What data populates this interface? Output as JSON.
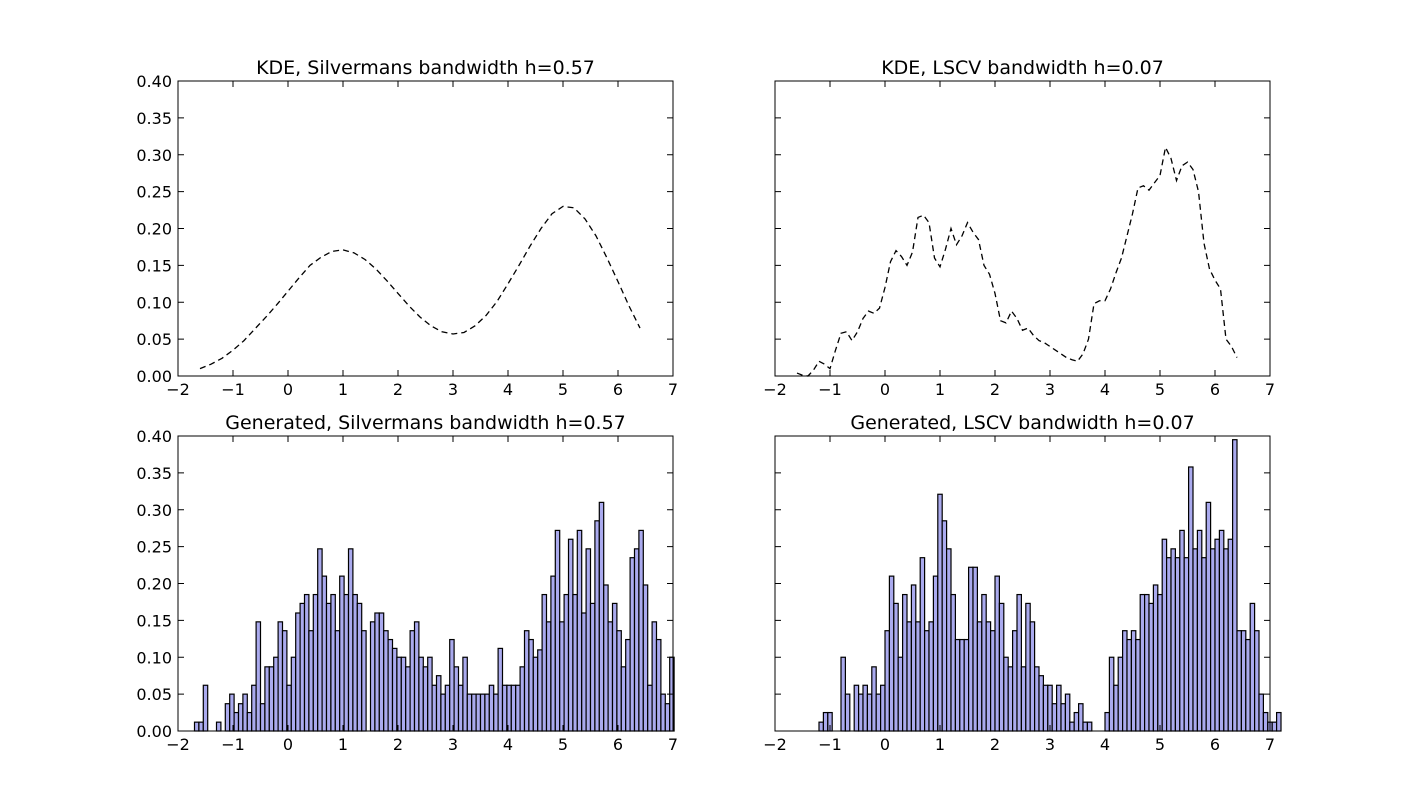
{
  "colors": {
    "bar_fill": "#aaaaee",
    "bar_edge": "#000000",
    "line": "#000000",
    "background": "#ffffff"
  },
  "chart_data": [
    {
      "type": "line",
      "title": "KDE, Silvermans bandwidth h=0.57",
      "line_style": "dashed",
      "xlim": [
        -2,
        7
      ],
      "ylim": [
        0,
        0.4
      ],
      "xticks": [
        -2,
        -1,
        0,
        1,
        2,
        3,
        4,
        5,
        6,
        7
      ],
      "yticks": [
        "0.00",
        "0.05",
        "0.10",
        "0.15",
        "0.20",
        "0.25",
        "0.30",
        "0.35",
        "0.40"
      ],
      "y_tick_labels_visible": true,
      "x": [
        -1.6,
        -1.4,
        -1.2,
        -1.0,
        -0.8,
        -0.6,
        -0.4,
        -0.2,
        0.0,
        0.2,
        0.4,
        0.6,
        0.8,
        1.0,
        1.2,
        1.4,
        1.6,
        1.8,
        2.0,
        2.2,
        2.4,
        2.6,
        2.8,
        3.0,
        3.2,
        3.4,
        3.6,
        3.8,
        4.0,
        4.2,
        4.4,
        4.6,
        4.8,
        5.0,
        5.2,
        5.4,
        5.6,
        5.8,
        6.0,
        6.2,
        6.4
      ],
      "y": [
        0.01,
        0.016,
        0.024,
        0.035,
        0.048,
        0.064,
        0.08,
        0.097,
        0.115,
        0.133,
        0.15,
        0.161,
        0.169,
        0.171,
        0.167,
        0.158,
        0.145,
        0.129,
        0.112,
        0.095,
        0.08,
        0.068,
        0.06,
        0.057,
        0.059,
        0.068,
        0.082,
        0.101,
        0.125,
        0.15,
        0.176,
        0.2,
        0.22,
        0.23,
        0.228,
        0.213,
        0.19,
        0.16,
        0.128,
        0.095,
        0.065
      ]
    },
    {
      "type": "line",
      "title": "KDE, LSCV bandwidth h=0.07",
      "line_style": "dashed",
      "xlim": [
        -2,
        7
      ],
      "ylim": [
        0,
        0.4
      ],
      "xticks": [
        -2,
        -1,
        0,
        1,
        2,
        3,
        4,
        5,
        6,
        7
      ],
      "yticks": [
        "0.00",
        "0.05",
        "0.10",
        "0.15",
        "0.20",
        "0.25",
        "0.30",
        "0.35",
        "0.40"
      ],
      "y_tick_labels_visible": false,
      "x": [
        -1.6,
        -1.5,
        -1.4,
        -1.3,
        -1.2,
        -1.1,
        -1.0,
        -0.9,
        -0.8,
        -0.7,
        -0.6,
        -0.5,
        -0.4,
        -0.3,
        -0.2,
        -0.1,
        0.0,
        0.1,
        0.2,
        0.3,
        0.4,
        0.5,
        0.6,
        0.7,
        0.8,
        0.9,
        1.0,
        1.1,
        1.2,
        1.3,
        1.4,
        1.5,
        1.6,
        1.7,
        1.8,
        1.9,
        2.0,
        2.1,
        2.2,
        2.3,
        2.4,
        2.5,
        2.6,
        2.7,
        2.8,
        2.9,
        3.0,
        3.1,
        3.2,
        3.3,
        3.4,
        3.5,
        3.6,
        3.7,
        3.8,
        3.9,
        4.0,
        4.1,
        4.2,
        4.3,
        4.4,
        4.5,
        4.6,
        4.7,
        4.8,
        4.9,
        5.0,
        5.1,
        5.2,
        5.3,
        5.4,
        5.5,
        5.6,
        5.7,
        5.8,
        5.9,
        6.0,
        6.1,
        6.2,
        6.3,
        6.4
      ],
      "y": [
        0.004,
        0.001,
        0.0,
        0.008,
        0.02,
        0.016,
        0.01,
        0.035,
        0.058,
        0.06,
        0.048,
        0.06,
        0.078,
        0.088,
        0.085,
        0.092,
        0.12,
        0.155,
        0.17,
        0.162,
        0.15,
        0.168,
        0.215,
        0.218,
        0.208,
        0.16,
        0.148,
        0.172,
        0.2,
        0.178,
        0.19,
        0.208,
        0.195,
        0.185,
        0.15,
        0.138,
        0.112,
        0.075,
        0.072,
        0.088,
        0.078,
        0.062,
        0.065,
        0.055,
        0.048,
        0.045,
        0.04,
        0.035,
        0.03,
        0.025,
        0.022,
        0.02,
        0.03,
        0.05,
        0.098,
        0.102,
        0.102,
        0.118,
        0.14,
        0.16,
        0.19,
        0.22,
        0.255,
        0.258,
        0.252,
        0.262,
        0.272,
        0.31,
        0.295,
        0.265,
        0.285,
        0.29,
        0.28,
        0.25,
        0.18,
        0.145,
        0.13,
        0.118,
        0.05,
        0.04,
        0.025
      ]
    },
    {
      "type": "bar",
      "title": "Generated, Silvermans bandwidth h=0.57",
      "xlim": [
        -2,
        7
      ],
      "ylim": [
        0,
        0.4
      ],
      "xticks": [
        -2,
        -1,
        0,
        1,
        2,
        3,
        4,
        5,
        6,
        7
      ],
      "yticks": [
        "0.00",
        "0.05",
        "0.10",
        "0.15",
        "0.20",
        "0.25",
        "0.30",
        "0.35",
        "0.40"
      ],
      "y_tick_labels_visible": true,
      "x_start": -1.7,
      "bin_width": 0.08,
      "values": [
        0.012,
        0.012,
        0.062,
        0.0,
        0.0,
        0.012,
        0.0,
        0.037,
        0.05,
        0.025,
        0.037,
        0.05,
        0.025,
        0.062,
        0.148,
        0.037,
        0.087,
        0.087,
        0.1,
        0.148,
        0.136,
        0.062,
        0.1,
        0.16,
        0.173,
        0.185,
        0.136,
        0.185,
        0.247,
        0.21,
        0.173,
        0.185,
        0.136,
        0.21,
        0.185,
        0.247,
        0.185,
        0.173,
        0.136,
        0.0,
        0.148,
        0.16,
        0.16,
        0.136,
        0.124,
        0.112,
        0.1,
        0.1,
        0.087,
        0.136,
        0.148,
        0.1,
        0.087,
        0.1,
        0.062,
        0.075,
        0.05,
        0.062,
        0.124,
        0.087,
        0.062,
        0.1,
        0.05,
        0.05,
        0.05,
        0.05,
        0.05,
        0.062,
        0.05,
        0.112,
        0.062,
        0.062,
        0.062,
        0.062,
        0.087,
        0.136,
        0.124,
        0.1,
        0.11,
        0.185,
        0.148,
        0.21,
        0.272,
        0.148,
        0.185,
        0.26,
        0.185,
        0.272,
        0.16,
        0.247,
        0.173,
        0.285,
        0.31,
        0.198,
        0.148,
        0.173,
        0.136,
        0.087,
        0.124,
        0.235,
        0.247,
        0.272,
        0.198,
        0.062,
        0.148,
        0.124,
        0.05,
        0.037,
        0.1
      ]
    },
    {
      "type": "bar",
      "title": "Generated, LSCV bandwidth h=0.07",
      "xlim": [
        -2,
        7
      ],
      "ylim": [
        0,
        0.4
      ],
      "xticks": [
        -2,
        -1,
        0,
        1,
        2,
        3,
        4,
        5,
        6,
        7
      ],
      "yticks": [
        "0.00",
        "0.05",
        "0.10",
        "0.15",
        "0.20",
        "0.25",
        "0.30",
        "0.35",
        "0.40"
      ],
      "y_tick_labels_visible": false,
      "x_start": -1.2,
      "bin_width": 0.08,
      "values": [
        0.012,
        0.025,
        0.025,
        0.0,
        0.0,
        0.1,
        0.05,
        0.0,
        0.062,
        0.05,
        0.062,
        0.05,
        0.087,
        0.05,
        0.062,
        0.136,
        0.21,
        0.173,
        0.1,
        0.185,
        0.148,
        0.198,
        0.148,
        0.235,
        0.136,
        0.148,
        0.21,
        0.321,
        0.285,
        0.247,
        0.185,
        0.124,
        0.124,
        0.124,
        0.222,
        0.222,
        0.148,
        0.185,
        0.148,
        0.136,
        0.21,
        0.173,
        0.1,
        0.087,
        0.136,
        0.185,
        0.087,
        0.173,
        0.148,
        0.087,
        0.075,
        0.062,
        0.062,
        0.037,
        0.062,
        0.037,
        0.05,
        0.012,
        0.025,
        0.037,
        0.012,
        0.012,
        0.0,
        0.0,
        0.0,
        0.025,
        0.1,
        0.062,
        0.1,
        0.136,
        0.124,
        0.136,
        0.124,
        0.185,
        0.185,
        0.173,
        0.198,
        0.185,
        0.26,
        0.235,
        0.247,
        0.235,
        0.272,
        0.235,
        0.358,
        0.247,
        0.272,
        0.235,
        0.31,
        0.247,
        0.26,
        0.272,
        0.247,
        0.26,
        0.395,
        0.136,
        0.136,
        0.124,
        0.173,
        0.136,
        0.05,
        0.025,
        0.012,
        0.012,
        0.025
      ]
    }
  ]
}
